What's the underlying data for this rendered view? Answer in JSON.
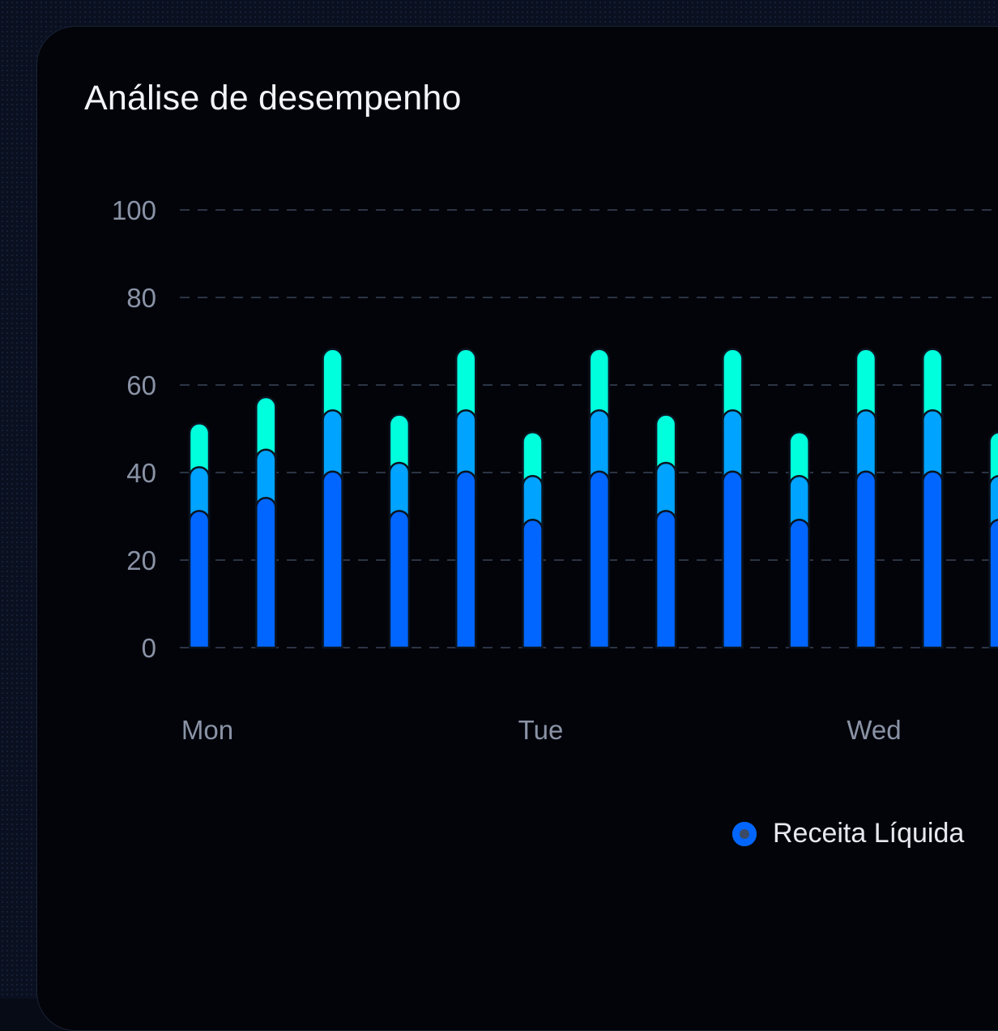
{
  "header": {
    "title": "Análise de desempenho"
  },
  "legend": {
    "label": "Receita Líquida",
    "color": "#0066ff"
  },
  "colors": {
    "bottom": "#0066ff",
    "middle": "#00a3ff",
    "top": "#00ffdd",
    "grid": "#2c3444",
    "axis_text": "#8a93a6"
  },
  "chart_data": {
    "type": "bar",
    "stacked": true,
    "ylim": [
      0,
      100
    ],
    "yticks": [
      0,
      20,
      40,
      60,
      80,
      100
    ],
    "x_labels": [
      {
        "label": "Mon",
        "index": 0
      },
      {
        "label": "Tue",
        "index": 5
      },
      {
        "label": "Wed",
        "index": 10
      }
    ],
    "bars": [
      {
        "bottom": 29,
        "middle": 10,
        "top": 10
      },
      {
        "bottom": 32,
        "middle": 11,
        "top": 12
      },
      {
        "bottom": 38,
        "middle": 14,
        "top": 14
      },
      {
        "bottom": 29,
        "middle": 11,
        "top": 11
      },
      {
        "bottom": 38,
        "middle": 14,
        "top": 14
      },
      {
        "bottom": 27,
        "middle": 10,
        "top": 10
      },
      {
        "bottom": 38,
        "middle": 14,
        "top": 14
      },
      {
        "bottom": 29,
        "middle": 11,
        "top": 11
      },
      {
        "bottom": 38,
        "middle": 14,
        "top": 14
      },
      {
        "bottom": 27,
        "middle": 10,
        "top": 10
      },
      {
        "bottom": 38,
        "middle": 14,
        "top": 14
      },
      {
        "bottom": 38,
        "middle": 14,
        "top": 14
      },
      {
        "bottom": 27,
        "middle": 10,
        "top": 10
      }
    ]
  }
}
